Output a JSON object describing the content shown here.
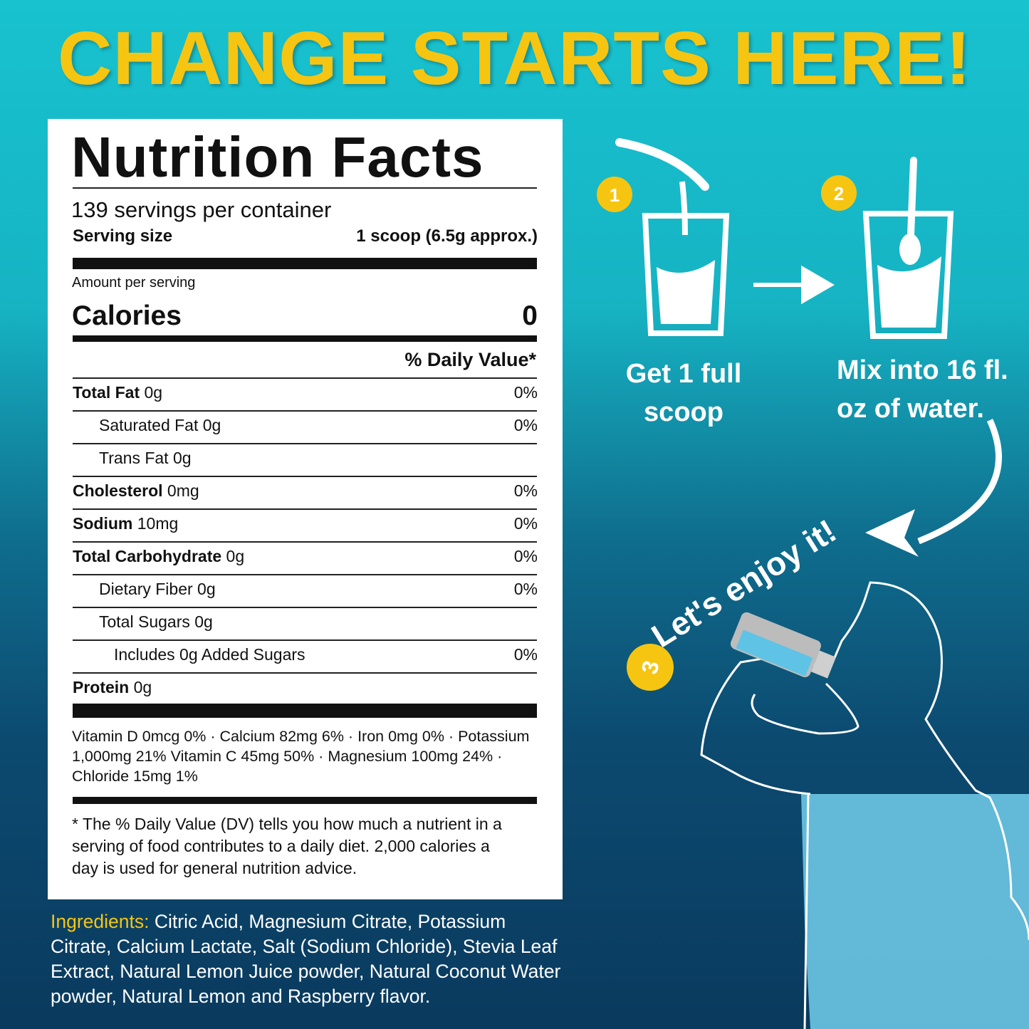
{
  "headline": "CHANGE STARTS HERE!",
  "nutrition": {
    "title": "Nutrition Facts",
    "servings": "139 servings per container",
    "serving_size": {
      "label": "Serving size",
      "value": "1 scoop (6.5g approx.)"
    },
    "amount_per_serving": "Amount per serving",
    "calories": {
      "label": "Calories",
      "value": "0"
    },
    "daily_value_header": "% Daily Value*",
    "rows": [
      {
        "name": "Total Fat",
        "amount": "0g",
        "dv": "0%",
        "sub": [
          {
            "name": "Saturated Fat",
            "amount": "0g",
            "dv": "0%"
          },
          {
            "name": "Trans Fat",
            "amount": "0g"
          }
        ]
      },
      {
        "name": "Cholesterol",
        "amount": "0mg",
        "dv": "0%"
      },
      {
        "name": "Sodium",
        "amount": "10mg",
        "dv": "0%"
      },
      {
        "name": "Total Carbohydrate",
        "amount": "0g",
        "dv": "0%",
        "sub": [
          {
            "name": "Dietary Fiber",
            "amount": "0g",
            "dv": "0%"
          },
          {
            "name": "Total Sugars",
            "amount": "0g",
            "sub": [
              {
                "name": "Includes 0g Added Sugars",
                "dv": "0%"
              }
            ]
          }
        ]
      },
      {
        "name": "Protein",
        "amount": "0g"
      }
    ],
    "vitamins": "Vitamin D 0mcg 0% · Calcium 82mg 6% · Iron 0mg 0% · Potassium 1,000mg 21% Vitamin C 45mg 50% · Magnesium 100mg 24% · Chloride 15mg 1%",
    "footnote": "* The % Daily Value (DV) tells you how much a nutrient in a serving of food contributes to a daily diet. 2,000 calories a day is used for general nutrition advice."
  },
  "ingredients": {
    "label": "Ingredients:",
    "text": "Citric Acid, Magnesium Citrate, Potassium Citrate, Calcium Lactate, Salt (Sodium Chloride), Stevia Leaf Extract, Natural Lemon Juice powder, Natural Coconut Water powder, Natural Lemon and Raspberry flavor."
  },
  "steps": [
    {
      "number": "1",
      "text": "Get 1 full scoop"
    },
    {
      "number": "2",
      "text": "Mix into 16 fl. oz of water."
    },
    {
      "number": "3",
      "text": "Let's enjoy it!"
    }
  ]
}
